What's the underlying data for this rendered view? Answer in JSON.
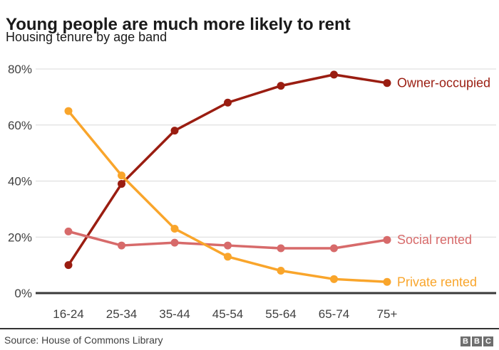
{
  "header": {
    "title": "Young people are much more likely to rent",
    "subtitle": "Housing tenure by age band"
  },
  "chart_data": {
    "type": "line",
    "categories": [
      "16-24",
      "25-34",
      "35-44",
      "45-54",
      "55-64",
      "65-74",
      "75+"
    ],
    "series": [
      {
        "name": "Owner-occupied",
        "color": "#9a1d11",
        "values": [
          10,
          39,
          58,
          68,
          74,
          78,
          75
        ]
      },
      {
        "name": "Social rented",
        "color": "#d76a6a",
        "values": [
          22,
          17,
          18,
          17,
          16,
          16,
          19
        ]
      },
      {
        "name": "Private rented",
        "color": "#f9a52b",
        "values": [
          65,
          42,
          23,
          13,
          8,
          5,
          4
        ]
      }
    ],
    "title": "Young people are much more likely to rent",
    "subtitle": "Housing tenure by age band",
    "xlabel": "",
    "ylabel": "",
    "ylim": [
      0,
      80
    ],
    "yticks": [
      0,
      20,
      40,
      60,
      80
    ],
    "ytick_suffix": "%",
    "grid": true,
    "legend_position": "right-of-last-point"
  },
  "footer": {
    "source": "Source: House of Commons Library",
    "logo": [
      "B",
      "B",
      "C"
    ]
  },
  "colors": {
    "grid": "#d9d9d9",
    "axis": "#3a3a3a",
    "tick_label": "#404040",
    "title": "#1a1a1a",
    "logo_bg": "#6e6e6e"
  }
}
